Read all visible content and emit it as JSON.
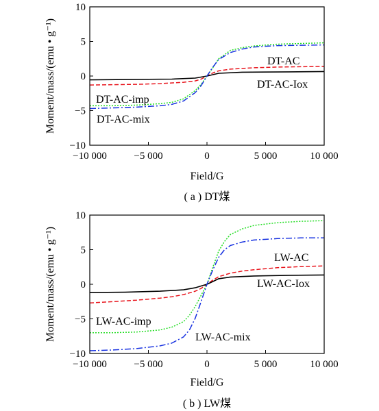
{
  "chart_data": [
    {
      "type": "line",
      "caption": "( a ) DT煤",
      "xlabel": "Field/G",
      "ylabel": "Moment/mass/(emu • g⁻¹)",
      "xlim": [
        -10000,
        10000
      ],
      "ylim": [
        -10,
        10
      ],
      "xticks": [
        -10000,
        -5000,
        0,
        5000,
        10000
      ],
      "xtick_labels": [
        "−10 000",
        "−5 000",
        "0",
        "5 000",
        "10 000"
      ],
      "yticks": [
        -10,
        -5,
        0,
        5,
        10
      ],
      "ytick_labels": [
        "−10",
        "−5",
        "0",
        "5",
        "10"
      ],
      "grid": false,
      "series": [
        {
          "name": "DT-AC",
          "color": "#e8141c",
          "style": "dashed",
          "x": [
            -10000,
            -8000,
            -6000,
            -4000,
            -2000,
            -1000,
            -500,
            0,
            500,
            1000,
            2000,
            4000,
            6000,
            8000,
            10000
          ],
          "y": [
            -1.3,
            -1.25,
            -1.2,
            -1.1,
            -0.9,
            -0.7,
            -0.45,
            0.0,
            0.45,
            0.75,
            1.0,
            1.2,
            1.3,
            1.35,
            1.4
          ]
        },
        {
          "name": "DT-AC-Iox",
          "color": "#000000",
          "style": "solid",
          "x": [
            -10000,
            -7000,
            -3000,
            -1000,
            -500,
            0,
            500,
            1000,
            3000,
            7000,
            10000
          ],
          "y": [
            -0.55,
            -0.5,
            -0.45,
            -0.3,
            -0.15,
            0.0,
            0.2,
            0.4,
            0.55,
            0.6,
            0.65
          ]
        },
        {
          "name": "DT-AC-imp",
          "color": "#22dd22",
          "style": "dotted",
          "x": [
            -10000,
            -8000,
            -6000,
            -4000,
            -3000,
            -2000,
            -1000,
            -500,
            0,
            500,
            1000,
            2000,
            3000,
            4000,
            6000,
            8000,
            10000
          ],
          "y": [
            -4.3,
            -4.3,
            -4.2,
            -4.0,
            -3.8,
            -3.3,
            -2.1,
            -1.2,
            0.0,
            1.2,
            2.5,
            3.7,
            4.1,
            4.35,
            4.6,
            4.7,
            4.8
          ]
        },
        {
          "name": "DT-AC-mix",
          "color": "#1630e0",
          "style": "dashdot",
          "x": [
            -10000,
            -8000,
            -6000,
            -4000,
            -3000,
            -2000,
            -1000,
            -500,
            0,
            500,
            1000,
            2000,
            3000,
            4000,
            6000,
            8000,
            10000
          ],
          "y": [
            -4.7,
            -4.6,
            -4.5,
            -4.3,
            -4.1,
            -3.6,
            -2.4,
            -1.4,
            0.0,
            1.3,
            2.4,
            3.4,
            3.9,
            4.2,
            4.4,
            4.45,
            4.5
          ]
        }
      ],
      "annotations": [
        "DT-AC",
        "DT-AC-Iox",
        "DT-AC-imp",
        "DT-AC-mix"
      ]
    },
    {
      "type": "line",
      "caption": "( b ) LW煤",
      "xlabel": "Field/G",
      "ylabel": "Moment/mass/(emu • g⁻¹)",
      "xlim": [
        -10000,
        10000
      ],
      "ylim": [
        -10,
        10
      ],
      "xticks": [
        -10000,
        -5000,
        0,
        5000,
        10000
      ],
      "xtick_labels": [
        "−10 000",
        "−5 000",
        "0",
        "5 000",
        "10 000"
      ],
      "yticks": [
        -10,
        -5,
        0,
        5,
        10
      ],
      "ytick_labels": [
        "−10",
        "−5",
        "0",
        "5",
        "10"
      ],
      "grid": false,
      "series": [
        {
          "name": "LW-AC",
          "color": "#e8141c",
          "style": "dashed",
          "x": [
            -10000,
            -8000,
            -6000,
            -4000,
            -3000,
            -2000,
            -1000,
            -500,
            0,
            500,
            1000,
            2000,
            3000,
            4000,
            6000,
            8000,
            10000
          ],
          "y": [
            -2.7,
            -2.5,
            -2.3,
            -2.0,
            -1.8,
            -1.5,
            -1.0,
            -0.6,
            0.0,
            0.6,
            1.1,
            1.6,
            1.9,
            2.1,
            2.4,
            2.55,
            2.65
          ]
        },
        {
          "name": "LW-AC-Iox",
          "color": "#000000",
          "style": "solid",
          "x": [
            -10000,
            -7000,
            -4000,
            -2000,
            -1000,
            -500,
            0,
            500,
            1000,
            2000,
            4000,
            7000,
            10000
          ],
          "y": [
            -1.2,
            -1.15,
            -1.0,
            -0.8,
            -0.5,
            -0.25,
            0.0,
            0.4,
            0.8,
            1.05,
            1.2,
            1.3,
            1.35
          ]
        },
        {
          "name": "LW-AC-imp",
          "color": "#22dd22",
          "style": "dotted",
          "x": [
            -10000,
            -8000,
            -6000,
            -4000,
            -3000,
            -2000,
            -1500,
            -1000,
            -500,
            0,
            500,
            1000,
            1500,
            2000,
            3000,
            4000,
            6000,
            8000,
            10000
          ],
          "y": [
            -7.0,
            -7.0,
            -6.9,
            -6.6,
            -6.2,
            -5.4,
            -4.5,
            -3.2,
            -1.6,
            0.0,
            2.5,
            4.8,
            6.2,
            7.2,
            8.0,
            8.5,
            8.9,
            9.1,
            9.2
          ]
        },
        {
          "name": "LW-AC-mix",
          "color": "#1630e0",
          "style": "dashdot",
          "x": [
            -10000,
            -8000,
            -6000,
            -4000,
            -3000,
            -2000,
            -1500,
            -1000,
            -500,
            0,
            500,
            1000,
            1500,
            2000,
            3000,
            4000,
            6000,
            8000,
            10000
          ],
          "y": [
            -9.6,
            -9.5,
            -9.3,
            -8.9,
            -8.5,
            -7.6,
            -6.6,
            -4.9,
            -2.5,
            0.0,
            2.1,
            3.9,
            5.0,
            5.6,
            6.1,
            6.4,
            6.6,
            6.7,
            6.7
          ]
        }
      ],
      "annotations": [
        "LW-AC",
        "LW-AC-Iox",
        "LW-AC-imp",
        "LW-AC-mix"
      ]
    }
  ]
}
